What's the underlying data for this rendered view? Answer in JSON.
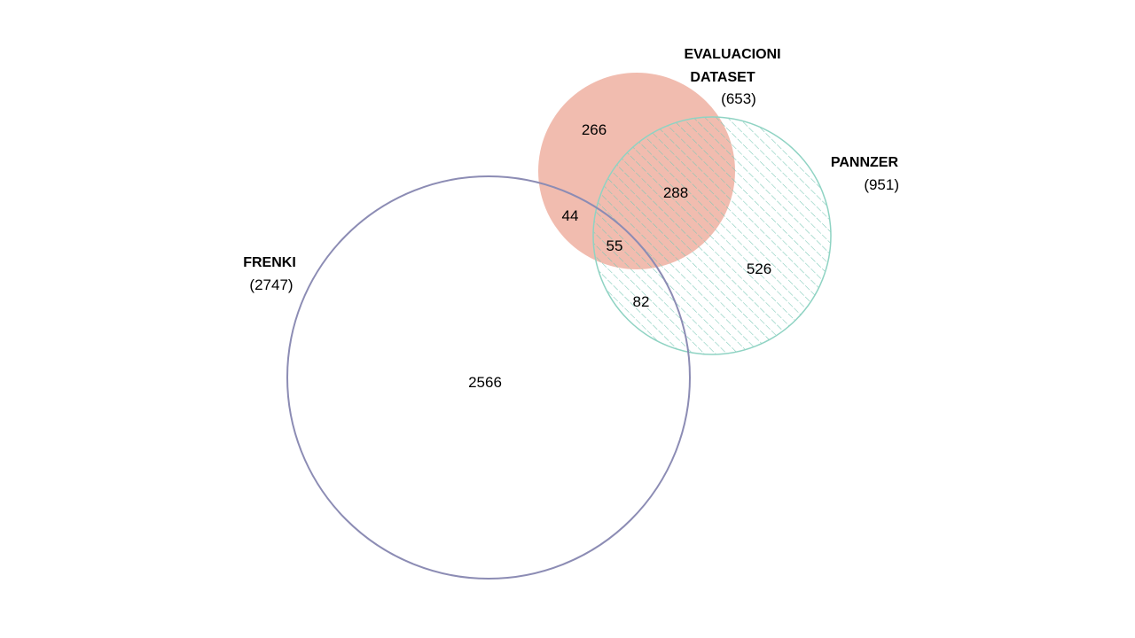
{
  "sets": {
    "evaluacioni": {
      "name_line1": "EVALUACIONI",
      "name_line2": "DATASET",
      "count": "(653)",
      "color": "#e8907a"
    },
    "pannzer": {
      "name": "PANNZER",
      "count": "(951)",
      "color": "#8fd3c3"
    },
    "frenki": {
      "name": "FRENKI",
      "count": "(2747)",
      "color": "#8c8cb4"
    }
  },
  "regions": {
    "evaluacioni_only": "266",
    "evaluacioni_pannzer": "288",
    "evaluacioni_frenki": "44",
    "all_three": "55",
    "pannzer_only": "526",
    "pannzer_frenki": "82",
    "frenki_only": "2566"
  }
}
